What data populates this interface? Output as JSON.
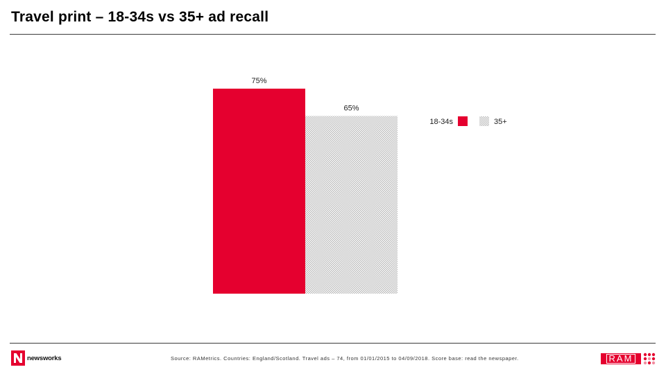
{
  "header": {
    "title": "Travel print – 18-34s vs 35+ ad recall"
  },
  "chart_data": {
    "type": "bar",
    "title": "Travel print – 18-34s vs 35+ ad recall",
    "categories": [
      "18-34s",
      "35+"
    ],
    "values": [
      75,
      65
    ],
    "value_labels": [
      "75%",
      "65%"
    ],
    "unit": "%",
    "ylim": [
      0,
      75
    ],
    "xlabel": "",
    "ylabel": "",
    "grid": false,
    "legend": {
      "placement": "top-right",
      "entries": [
        "18-34s",
        "35+"
      ]
    },
    "series_colors": [
      "#e5002f",
      "#c8c8c8"
    ]
  },
  "footer": {
    "source": "Source: RAMetrics. Countries: England/Scotland. Travel ads – 74, from 01/01/2015 to 04/09/2018. Score base: read the newspaper.",
    "logo_left_text": "newsworks",
    "logo_right_text": "RAM"
  },
  "colors": {
    "accent": "#e5002f",
    "pattern": "#bdbdbd"
  }
}
